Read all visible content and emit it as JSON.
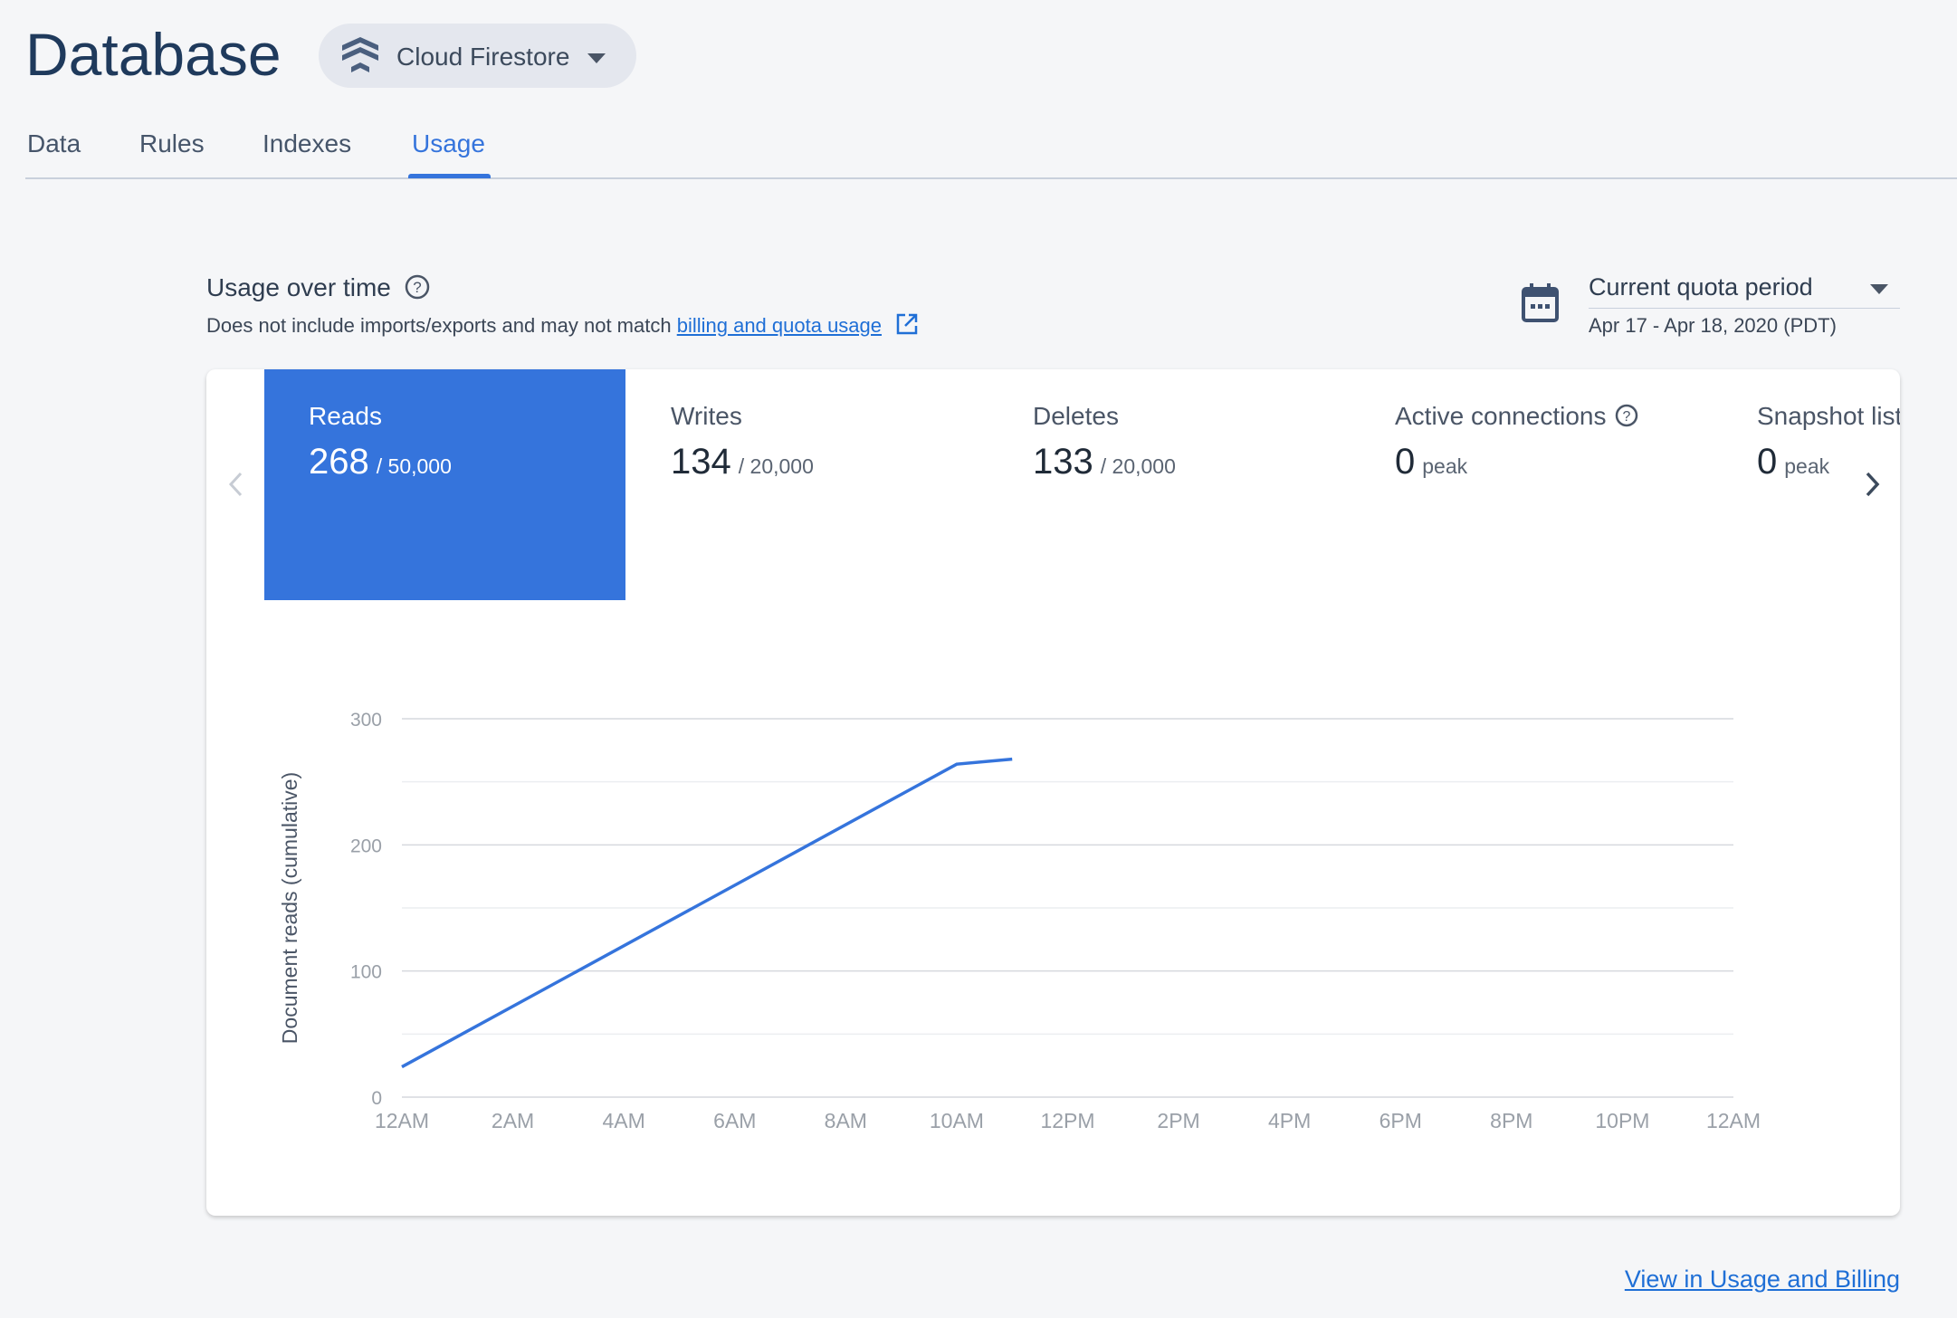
{
  "header": {
    "title": "Database",
    "product": "Cloud Firestore"
  },
  "tabs": [
    "Data",
    "Rules",
    "Indexes",
    "Usage"
  ],
  "section": {
    "title": "Usage over time",
    "subtitle": "Does not include imports/exports and may not match",
    "link": "billing and quota usage"
  },
  "period": {
    "label": "Current quota period",
    "range": "Apr 17 - Apr 18, 2020 (PDT)"
  },
  "metrics": [
    {
      "label": "Reads",
      "value": "268",
      "suffix": "/ 50,000"
    },
    {
      "label": "Writes",
      "value": "134",
      "suffix": "/ 20,000"
    },
    {
      "label": "Deletes",
      "value": "133",
      "suffix": "/ 20,000"
    },
    {
      "label": "Active connections",
      "value": "0",
      "suffix": "peak"
    },
    {
      "label": "Snapshot listeners",
      "value": "0",
      "suffix": "peak"
    }
  ],
  "chart_data": {
    "type": "line",
    "y_label": "Document reads (cumulative)",
    "x": [
      0,
      10,
      11
    ],
    "series": [
      {
        "name": "Reads",
        "color": "#3574dc",
        "values": [
          24,
          264,
          268
        ]
      }
    ],
    "xlim": [
      0,
      24
    ],
    "xticks": [
      {
        "value": 0,
        "label": "12AM"
      },
      {
        "value": 2,
        "label": "2AM"
      },
      {
        "value": 4,
        "label": "4AM"
      },
      {
        "value": 6,
        "label": "6AM"
      },
      {
        "value": 8,
        "label": "8AM"
      },
      {
        "value": 10,
        "label": "10AM"
      },
      {
        "value": 12,
        "label": "12PM"
      },
      {
        "value": 14,
        "label": "2PM"
      },
      {
        "value": 16,
        "label": "4PM"
      },
      {
        "value": 18,
        "label": "6PM"
      },
      {
        "value": 20,
        "label": "8PM"
      },
      {
        "value": 22,
        "label": "10PM"
      },
      {
        "value": 24,
        "label": "12AM"
      }
    ],
    "ylim": [
      0,
      300
    ],
    "yticks": [
      0,
      100,
      200,
      300
    ],
    "minor_yticks": [
      50,
      150,
      250
    ],
    "grid": true
  },
  "footer": {
    "link": "View in Usage and Billing"
  }
}
